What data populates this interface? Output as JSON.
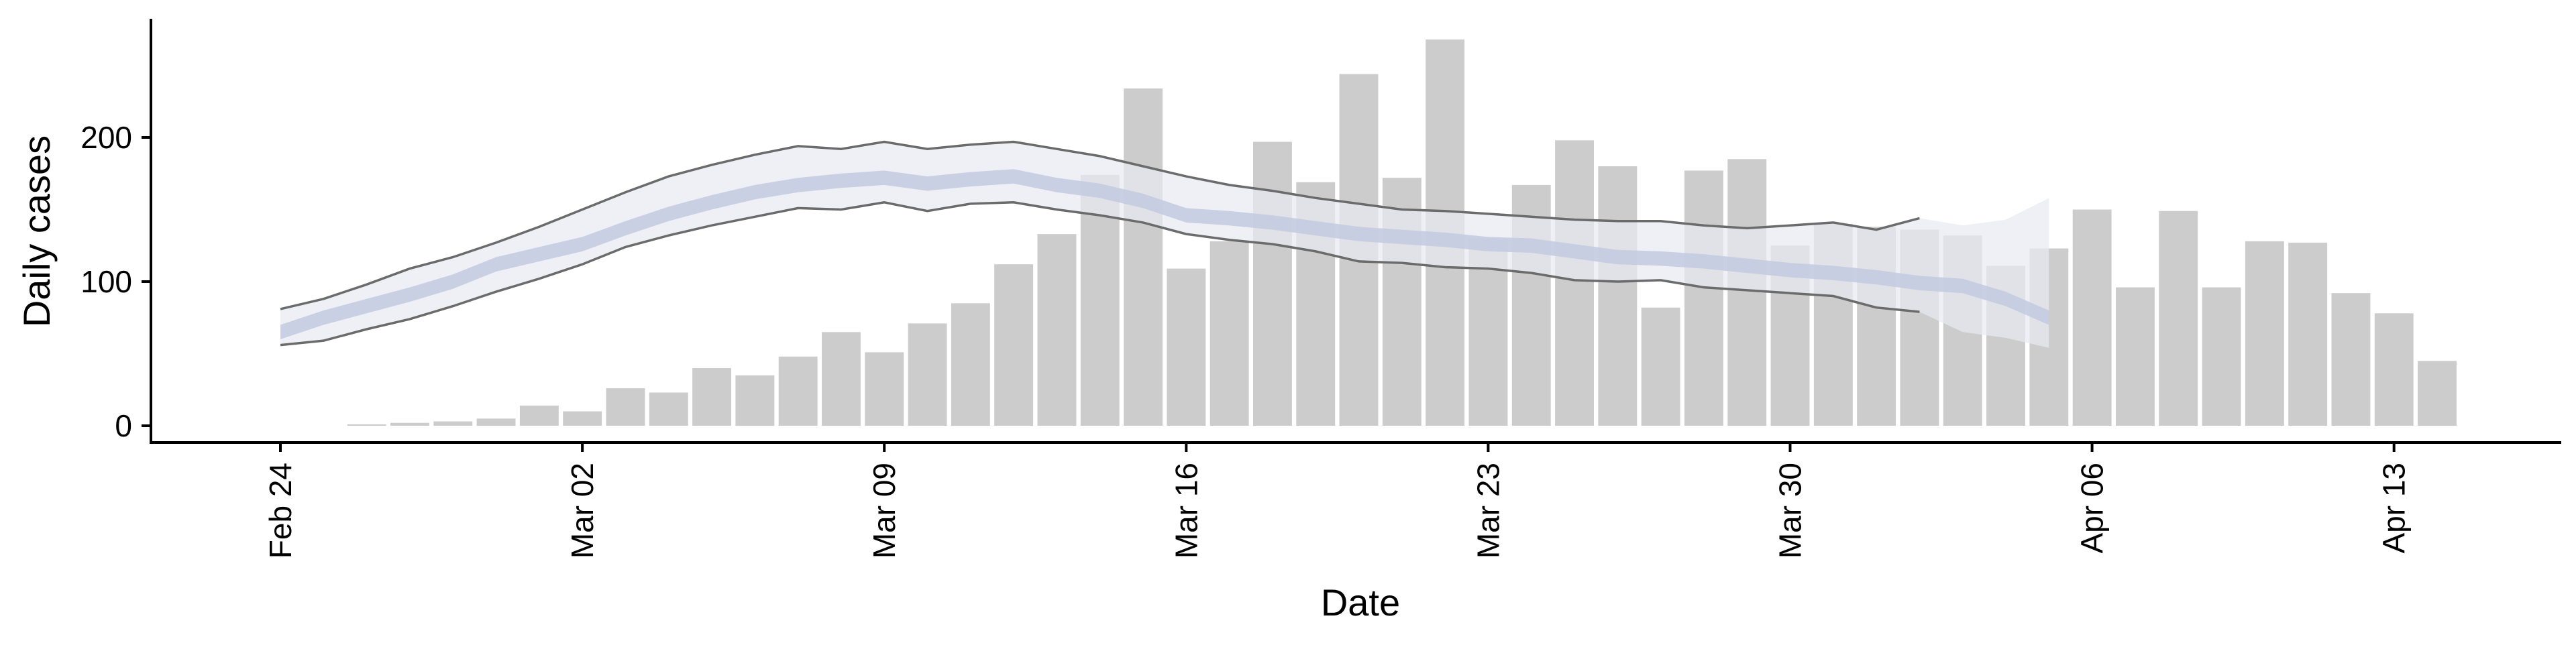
{
  "chart_data": {
    "type": "bar",
    "xlabel": "Date",
    "ylabel": "Daily cases",
    "ylim": [
      -12,
      280
    ],
    "x_tick_labels": [
      "Feb 24",
      "Mar 02",
      "Mar 09",
      "Mar 16",
      "Mar 23",
      "Mar 30",
      "Apr 06",
      "Apr 13"
    ],
    "y_ticks": [
      0,
      100,
      200
    ],
    "grid": false,
    "legend": "none",
    "colors": {
      "bars": "#cccccc",
      "outer_band": "#e8eaf3",
      "inner_band": "#c3cadf",
      "bound_lines": "#6b6b6b",
      "axis": "#000000"
    },
    "bars": {
      "start_date": "2020-02-26",
      "values": [
        1,
        2,
        3,
        5,
        14,
        10,
        26,
        23,
        40,
        35,
        48,
        65,
        51,
        71,
        85,
        112,
        133,
        174,
        234,
        109,
        128,
        197,
        169,
        244,
        172,
        268,
        130,
        167,
        198,
        180,
        82,
        177,
        185,
        125,
        140,
        138,
        136,
        132,
        111,
        123,
        150,
        96,
        149,
        96,
        128,
        127,
        92,
        78,
        45
      ]
    },
    "estimate": {
      "start_date": "2020-02-24",
      "outer_lower": [
        56,
        59,
        67,
        74,
        83,
        93,
        102,
        112,
        124,
        132,
        139,
        145,
        151,
        150,
        155,
        149,
        154,
        155,
        150,
        146,
        141,
        133,
        129,
        126,
        121,
        114,
        113,
        110,
        109,
        106,
        101,
        100,
        101,
        96,
        94,
        92,
        90,
        82,
        79,
        65,
        61,
        54
      ],
      "inner_lower": [
        60,
        70,
        78,
        86,
        95,
        107,
        114,
        121,
        132,
        142,
        150,
        157,
        162,
        165,
        167,
        163,
        166,
        168,
        162,
        158,
        151,
        141,
        139,
        136,
        132,
        128,
        126,
        124,
        121,
        120,
        116,
        112,
        111,
        109,
        106,
        103,
        101,
        98,
        94,
        92,
        83,
        70
      ],
      "inner_upper": [
        70,
        80,
        88,
        96,
        105,
        117,
        124,
        131,
        142,
        152,
        160,
        167,
        172,
        175,
        177,
        173,
        176,
        178,
        172,
        168,
        161,
        151,
        149,
        146,
        142,
        138,
        136,
        134,
        131,
        130,
        126,
        122,
        121,
        119,
        116,
        113,
        111,
        108,
        104,
        102,
        93,
        80
      ],
      "outer_upper": [
        81,
        88,
        98,
        109,
        117,
        127,
        138,
        150,
        162,
        173,
        181,
        188,
        194,
        192,
        197,
        192,
        195,
        197,
        192,
        187,
        180,
        173,
        167,
        163,
        158,
        154,
        150,
        149,
        147,
        145,
        143,
        142,
        142,
        139,
        137,
        139,
        141,
        136,
        144,
        139,
        143,
        158
      ],
      "lines_end_index": 38
    }
  }
}
